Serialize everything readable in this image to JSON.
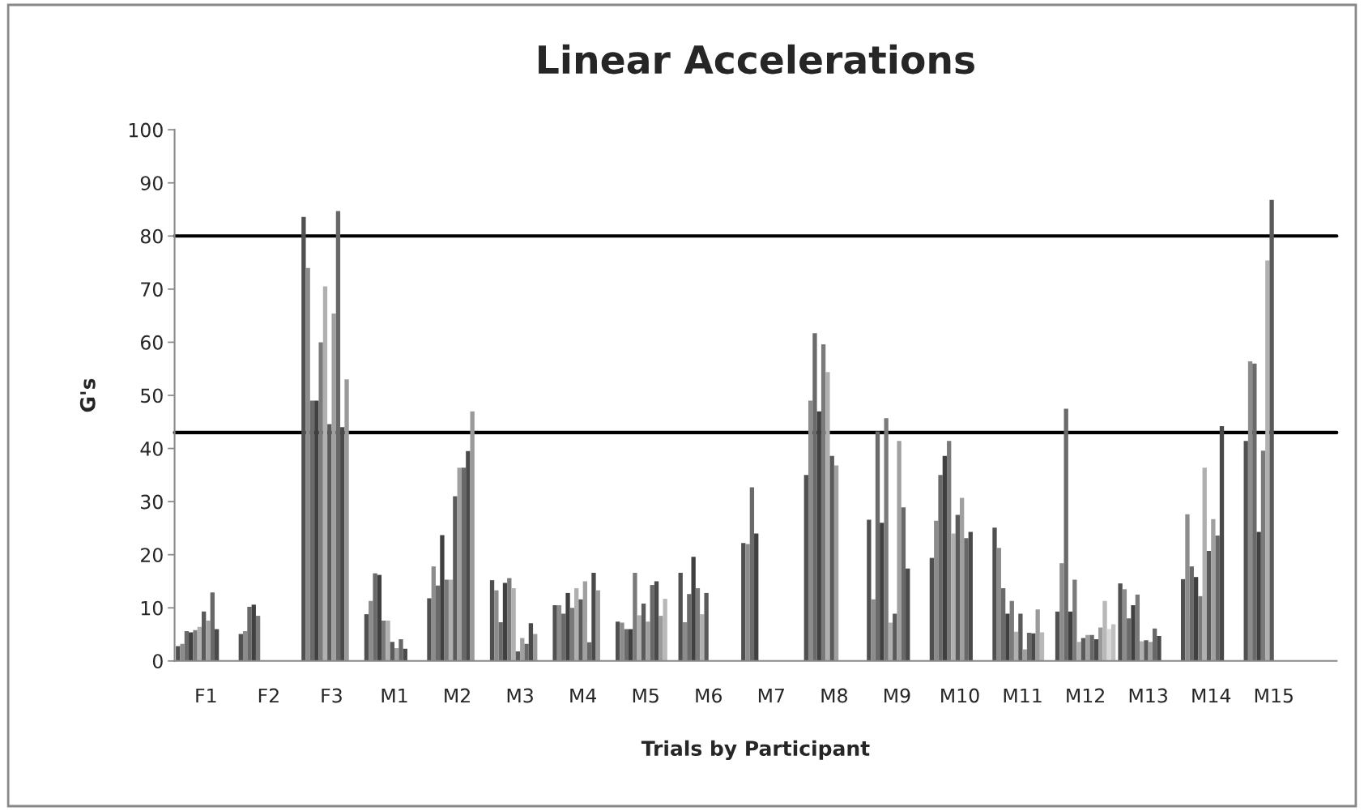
{
  "chart_data": {
    "type": "bar",
    "title": "Linear Accelerations",
    "xlabel": "Trials by Participant",
    "ylabel": "G's",
    "categories": [
      "F1",
      "F2",
      "F3",
      "M1",
      "M2",
      "M3",
      "M4",
      "M5",
      "M6",
      "M7",
      "M8",
      "M9",
      "M10",
      "M11",
      "M12",
      "M13",
      "M14",
      "M15"
    ],
    "series": [
      {
        "color": "#505050",
        "values": [
          2.8,
          5.1,
          83.6,
          8.8,
          11.8,
          15.2,
          10.5,
          7.4,
          16.6,
          22.2,
          35,
          26.6,
          19.4,
          25.1,
          9.3,
          14.6,
          15.4,
          41.4
        ]
      },
      {
        "color": "#8c8c8c",
        "values": [
          3.2,
          5.6,
          74,
          11.3,
          17.8,
          13.3,
          10.5,
          7.2,
          7.3,
          22,
          49,
          11.6,
          26.4,
          21.3,
          18.4,
          13.5,
          27.6,
          56.4
        ]
      },
      {
        "color": "#6a6a6a",
        "values": [
          5.6,
          10.2,
          49,
          16.5,
          14.2,
          7.3,
          8.9,
          6.0,
          12.6,
          32.7,
          61.7,
          43.2,
          35,
          13.7,
          47.5,
          8.0,
          17.8,
          56
        ]
      },
      {
        "color": "#404040",
        "values": [
          5.4,
          10.6,
          49,
          16.2,
          23.7,
          14.7,
          12.8,
          6.0,
          19.6,
          24,
          47,
          26,
          38.6,
          8.9,
          9.3,
          10.5,
          15.8,
          24.3
        ]
      },
      {
        "color": "#7a7a7a",
        "values": [
          5.8,
          8.5,
          60,
          7.6,
          15.3,
          15.6,
          10,
          16.6,
          13.7,
          null,
          59.6,
          45.7,
          41.4,
          11.3,
          15.3,
          12.5,
          12.2,
          39.6
        ]
      },
      {
        "color": "#b0b0b0",
        "values": [
          6.4,
          null,
          70.5,
          7.6,
          15.3,
          13.7,
          13.7,
          8.6,
          8.8,
          null,
          54.4,
          7.2,
          24,
          5.5,
          3.6,
          3.7,
          36.4,
          75.4
        ]
      },
      {
        "color": "#5a5a5a",
        "values": [
          9.3,
          null,
          44.6,
          3.6,
          31,
          1.8,
          11.6,
          10.8,
          12.8,
          null,
          38.6,
          8.9,
          27.5,
          8.9,
          4.3,
          3.9,
          20.7,
          86.8
        ]
      },
      {
        "color": "#a0a0a0",
        "values": [
          7.6,
          null,
          65.4,
          2.4,
          36.4,
          4.3,
          15,
          7.4,
          null,
          null,
          36.8,
          41.4,
          30.7,
          2.2,
          4.9,
          3.6,
          26.7,
          null
        ]
      },
      {
        "color": "#686868",
        "values": [
          12.9,
          null,
          84.7,
          4.1,
          36.4,
          3.2,
          3.5,
          14.3,
          null,
          null,
          null,
          28.9,
          23.1,
          5.3,
          4.9,
          6.1,
          23.6,
          null
        ]
      },
      {
        "color": "#4a4a4a",
        "values": [
          6.0,
          null,
          44,
          2.3,
          39.5,
          7.1,
          16.6,
          15,
          null,
          null,
          null,
          17.4,
          24.3,
          5.2,
          4.1,
          4.7,
          44.2,
          null
        ]
      },
      {
        "color": "#9a9a9a",
        "values": [
          null,
          null,
          53,
          null,
          47,
          5.1,
          13.3,
          8.5,
          null,
          null,
          null,
          null,
          null,
          9.7,
          6.3,
          null,
          null,
          null
        ]
      },
      {
        "color": "#b8b8b8",
        "values": [
          null,
          null,
          null,
          null,
          null,
          null,
          null,
          11.7,
          null,
          null,
          null,
          null,
          null,
          5.4,
          11.3,
          null,
          null,
          null
        ]
      },
      {
        "color": "#d8d8d8",
        "values": [
          null,
          null,
          null,
          null,
          null,
          null,
          null,
          null,
          null,
          null,
          null,
          null,
          null,
          null,
          6.0,
          null,
          null,
          null
        ]
      },
      {
        "color": "#c0c0c0",
        "values": [
          null,
          null,
          null,
          null,
          null,
          null,
          null,
          null,
          null,
          null,
          null,
          null,
          null,
          null,
          6.9,
          null,
          null,
          null
        ]
      }
    ],
    "ylim": [
      0,
      100
    ],
    "yticks": [
      0,
      10,
      20,
      30,
      40,
      50,
      60,
      70,
      80,
      90,
      100
    ],
    "ref_lines": [
      {
        "axis": "y",
        "value": 80,
        "color": "#000000"
      },
      {
        "axis": "y",
        "value": 43,
        "color": "#000000"
      }
    ]
  }
}
